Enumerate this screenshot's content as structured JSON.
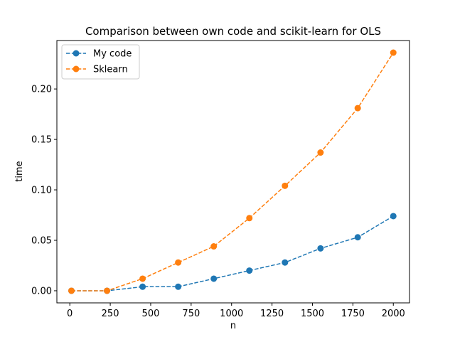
{
  "chart_data": {
    "type": "line",
    "title": "Comparison between own code and scikit-learn for OLS",
    "xlabel": "n",
    "ylabel": "time",
    "xlim": [
      -80,
      2100
    ],
    "ylim": [
      -0.012,
      0.248
    ],
    "xticks": [
      0,
      250,
      500,
      750,
      1000,
      1250,
      1500,
      1750,
      2000
    ],
    "yticks": [
      0.0,
      0.05,
      0.1,
      0.15,
      0.2
    ],
    "ytick_labels": [
      "0.00",
      "0.05",
      "0.10",
      "0.15",
      "0.20"
    ],
    "grid": false,
    "legend_position": "top-left",
    "x": [
      10,
      230,
      450,
      670,
      890,
      1110,
      1330,
      1550,
      1780,
      2000
    ],
    "series": [
      {
        "name": "My code",
        "color": "#1f77b4",
        "linestyle": "dashed",
        "marker": "circle",
        "values": [
          0.0,
          0.0,
          0.004,
          0.004,
          0.012,
          0.02,
          0.028,
          0.042,
          0.053,
          0.074
        ]
      },
      {
        "name": "Sklearn",
        "color": "#ff7f0e",
        "linestyle": "dashed",
        "marker": "circle",
        "values": [
          0.0,
          0.0,
          0.012,
          0.028,
          0.044,
          0.072,
          0.104,
          0.137,
          0.181,
          0.236
        ]
      }
    ]
  }
}
